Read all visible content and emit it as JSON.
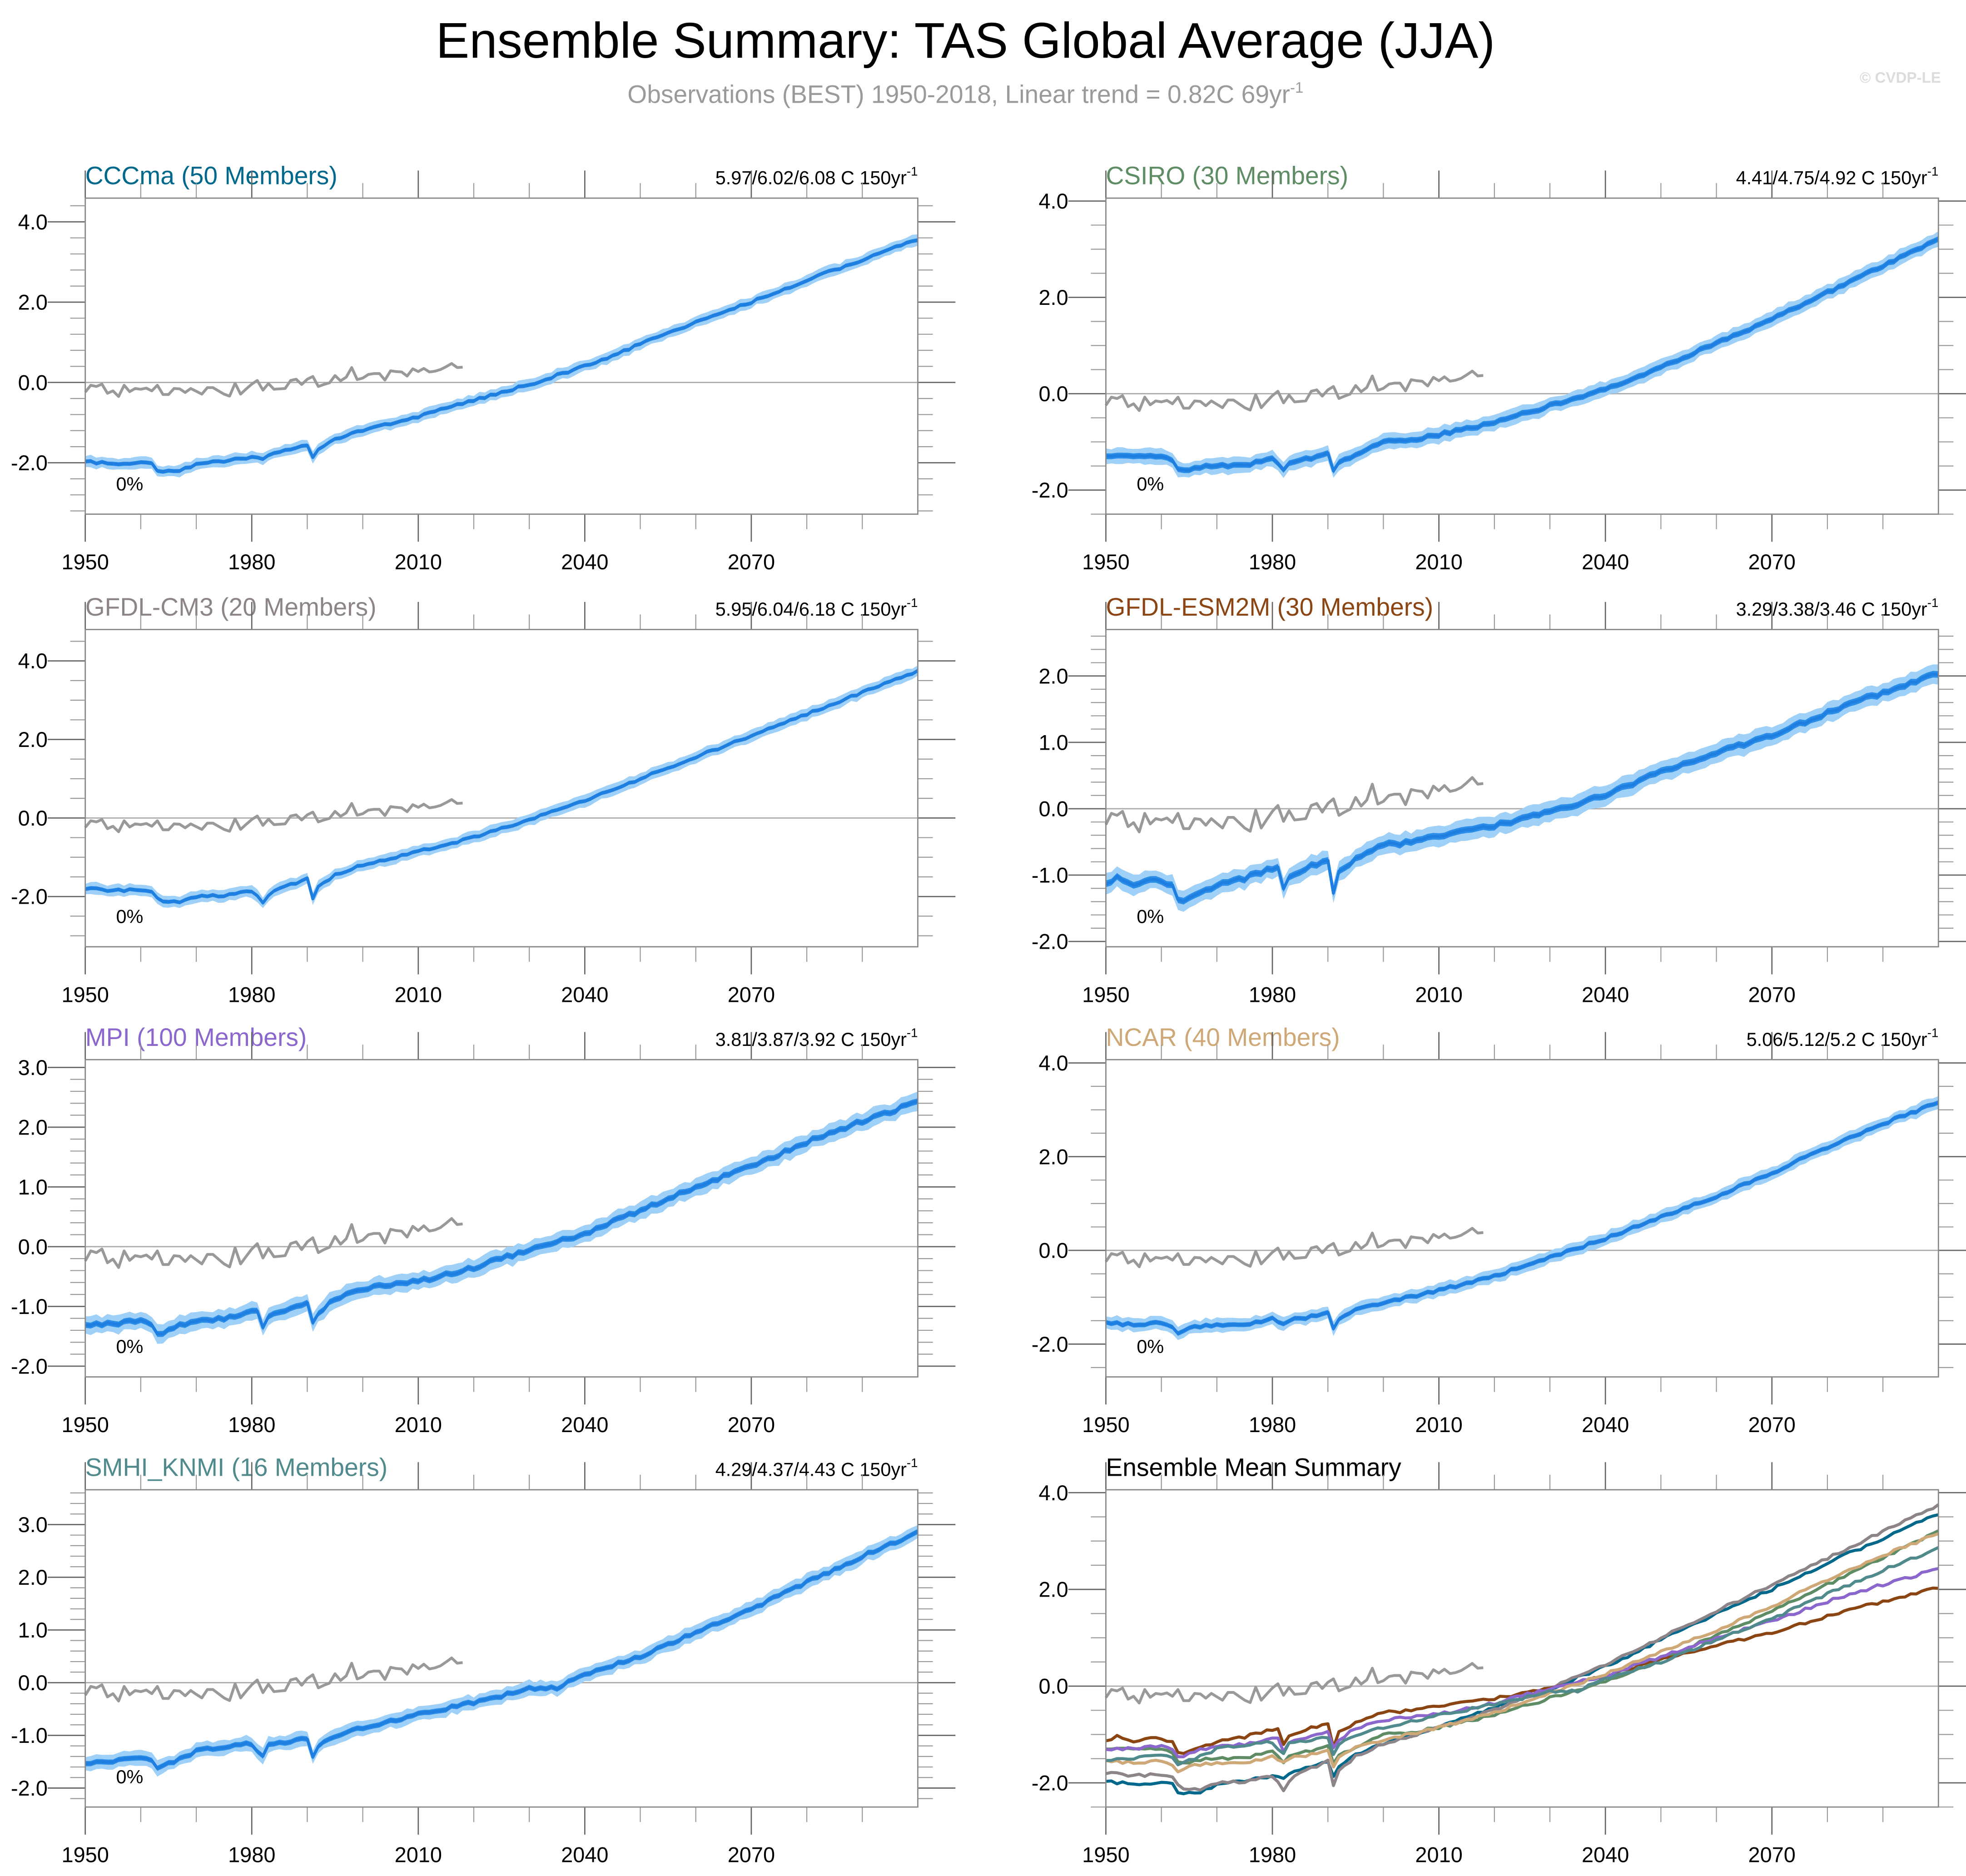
{
  "header": {
    "title": "Ensemble Summary: TAS Global Average (JJA)",
    "subtitle": "Observations (BEST) 1950-2018, Linear trend = 0.82C 69yr",
    "subtitle_sup": "-1",
    "watermark": "© CVDP-LE"
  },
  "colors": {
    "band_outer": "#9fd0f8",
    "band_inner": "#2c8de8",
    "mean_line": "#1e7fe0",
    "observations": "#999999",
    "zero_line": "#aaaaaa"
  },
  "chart_data": [
    {
      "type": "area",
      "id": "cccma",
      "title": "CCCma (50 Members)",
      "title_color": "#00688b",
      "trend_label": "5.97/6.02/6.08 C 150yr",
      "trend_sup": "-1",
      "pct_label": "0%",
      "xlim": [
        1950,
        2100
      ],
      "ylim": [
        -3.28,
        4.59
      ],
      "yticks": [
        "4.0",
        "2.0",
        "0.0",
        "-2.0"
      ],
      "ytick_values": [
        4.0,
        2.0,
        0.0,
        -2.0
      ],
      "yminor_step": 0.4,
      "xticks": [
        "1950",
        "1980",
        "2010",
        "2040",
        "2070"
      ],
      "ensemble_mean": {
        "x": [
          1950,
          1955,
          1960,
          1962,
          1963,
          1964,
          1967,
          1970,
          1975,
          1980,
          1982,
          1983,
          1985,
          1990,
          1991,
          1992,
          1995,
          2000,
          2010,
          2020,
          2030,
          2040,
          2050,
          2060,
          2070,
          2080,
          2090,
          2100
        ],
        "y": [
          -1.98,
          -2.02,
          -1.99,
          -2.03,
          -2.18,
          -2.2,
          -2.18,
          -2.05,
          -1.95,
          -1.85,
          -1.9,
          -1.82,
          -1.75,
          -1.55,
          -1.85,
          -1.65,
          -1.4,
          -1.2,
          -0.85,
          -0.45,
          -0.05,
          0.4,
          0.95,
          1.5,
          2.0,
          2.55,
          3.05,
          3.57
        ]
      },
      "spread_outer": 0.12,
      "spread_inner": 0.05
    },
    {
      "type": "area",
      "id": "csiro",
      "title": "CSIRO (30 Members)",
      "title_color": "#5e8c64",
      "trend_label": "4.41/4.75/4.92 C 150yr",
      "trend_sup": "-1",
      "pct_label": "0%",
      "xlim": [
        1950,
        2100
      ],
      "ylim": [
        -2.5,
        4.06
      ],
      "yticks": [
        "4.0",
        "2.0",
        "0.0",
        "-2.0"
      ],
      "ytick_values": [
        4.0,
        2.0,
        0.0,
        -2.0
      ],
      "yminor_step": 0.5,
      "xticks": [
        "1950",
        "1980",
        "2010",
        "2040",
        "2070"
      ],
      "ensemble_mean": {
        "x": [
          1950,
          1955,
          1960,
          1962,
          1963,
          1964,
          1967,
          1970,
          1975,
          1980,
          1982,
          1983,
          1985,
          1990,
          1991,
          1992,
          1995,
          2000,
          2005,
          2010,
          2020,
          2030,
          2040,
          2050,
          2060,
          2070,
          2080,
          2090,
          2100
        ],
        "y": [
          -1.28,
          -1.32,
          -1.3,
          -1.4,
          -1.55,
          -1.6,
          -1.52,
          -1.5,
          -1.48,
          -1.35,
          -1.58,
          -1.45,
          -1.38,
          -1.25,
          -1.62,
          -1.45,
          -1.25,
          -1.0,
          -0.97,
          -0.85,
          -0.6,
          -0.25,
          0.1,
          0.55,
          1.05,
          1.55,
          2.1,
          2.65,
          3.2
        ]
      },
      "spread_outer": 0.14,
      "spread_inner": 0.06
    },
    {
      "type": "area",
      "id": "gfdl-cm3",
      "title": "GFDL-CM3 (20 Members)",
      "title_color": "#8c8489",
      "trend_label": "5.95/6.04/6.18 C 150yr",
      "trend_sup": "-1",
      "pct_label": "0%",
      "xlim": [
        1950,
        2100
      ],
      "ylim": [
        -3.28,
        4.8
      ],
      "yticks": [
        "4.0",
        "2.0",
        "0.0",
        "-2.0"
      ],
      "ytick_values": [
        4.0,
        2.0,
        0.0,
        -2.0
      ],
      "yminor_step": 0.5,
      "xticks": [
        "1950",
        "1980",
        "2010",
        "2040",
        "2070"
      ],
      "ensemble_mean": {
        "x": [
          1950,
          1955,
          1960,
          1962,
          1963,
          1964,
          1967,
          1970,
          1975,
          1980,
          1982,
          1983,
          1985,
          1990,
          1991,
          1992,
          1995,
          2000,
          2010,
          2020,
          2030,
          2040,
          2050,
          2060,
          2070,
          2080,
          2090,
          2100
        ],
        "y": [
          -1.8,
          -1.85,
          -1.82,
          -1.88,
          -2.05,
          -2.1,
          -2.15,
          -2.0,
          -1.98,
          -1.85,
          -2.15,
          -1.95,
          -1.8,
          -1.55,
          -2.05,
          -1.75,
          -1.45,
          -1.2,
          -0.85,
          -0.5,
          -0.05,
          0.45,
          1.0,
          1.55,
          2.1,
          2.65,
          3.2,
          3.75
        ]
      },
      "spread_outer": 0.13,
      "spread_inner": 0.05
    },
    {
      "type": "area",
      "id": "gfdl-esm2m",
      "title": "GFDL-ESM2M (30 Members)",
      "title_color": "#8b4513",
      "trend_label": "3.29/3.38/3.46 C 150yr",
      "trend_sup": "-1",
      "pct_label": "0%",
      "xlim": [
        1950,
        2100
      ],
      "ylim": [
        -2.08,
        2.7
      ],
      "yticks": [
        "2.0",
        "1.0",
        "0.0",
        "-1.0",
        "-2.0"
      ],
      "ytick_values": [
        2.0,
        1.0,
        0.0,
        -1.0,
        -2.0
      ],
      "yminor_step": 0.2,
      "xticks": [
        "1950",
        "1980",
        "2010",
        "2040",
        "2070"
      ],
      "ensemble_mean": {
        "x": [
          1950,
          1952,
          1955,
          1958,
          1960,
          1962,
          1963,
          1964,
          1967,
          1970,
          1975,
          1980,
          1981,
          1982,
          1983,
          1985,
          1990,
          1991,
          1992,
          1995,
          2000,
          2005,
          2010,
          2020,
          2030,
          2040,
          2050,
          2060,
          2070,
          2080,
          2090,
          2100
        ],
        "y": [
          -1.15,
          -1.02,
          -1.15,
          -1.05,
          -1.12,
          -1.15,
          -1.35,
          -1.42,
          -1.25,
          -1.15,
          -1.05,
          -0.9,
          -0.85,
          -1.2,
          -1.0,
          -0.95,
          -0.75,
          -1.25,
          -0.95,
          -0.75,
          -0.55,
          -0.5,
          -0.4,
          -0.25,
          -0.05,
          0.2,
          0.55,
          0.85,
          1.1,
          1.45,
          1.75,
          2.05
        ]
      },
      "spread_outer": 0.13,
      "spread_inner": 0.05
    },
    {
      "type": "area",
      "id": "mpi",
      "title": "MPI (100 Members)",
      "title_color": "#8b66cc",
      "trend_label": "3.81/3.87/3.92 C 150yr",
      "trend_sup": "-1",
      "pct_label": "0%",
      "xlim": [
        1950,
        2100
      ],
      "ylim": [
        -2.18,
        3.13
      ],
      "yticks": [
        "3.0",
        "2.0",
        "1.0",
        "0.0",
        "-1.0",
        "-2.0"
      ],
      "ytick_values": [
        3.0,
        2.0,
        1.0,
        0.0,
        -1.0,
        -2.0
      ],
      "yminor_step": 0.2,
      "xticks": [
        "1950",
        "1980",
        "2010",
        "2040",
        "2070"
      ],
      "ensemble_mean": {
        "x": [
          1950,
          1955,
          1960,
          1962,
          1963,
          1964,
          1967,
          1970,
          1975,
          1980,
          1981,
          1982,
          1983,
          1985,
          1990,
          1991,
          1992,
          1995,
          2000,
          2010,
          2020,
          2030,
          2040,
          2050,
          2060,
          2070,
          2080,
          2090,
          2100
        ],
        "y": [
          -1.3,
          -1.3,
          -1.22,
          -1.3,
          -1.45,
          -1.45,
          -1.3,
          -1.25,
          -1.2,
          -1.08,
          -1.05,
          -1.35,
          -1.15,
          -1.1,
          -0.95,
          -1.25,
          -1.1,
          -0.88,
          -0.7,
          -0.58,
          -0.35,
          -0.05,
          0.22,
          0.6,
          1.0,
          1.35,
          1.75,
          2.1,
          2.42
        ]
      },
      "spread_outer": 0.13,
      "spread_inner": 0.05
    },
    {
      "type": "area",
      "id": "ncar",
      "title": "NCAR (40 Members)",
      "title_color": "#cfa878",
      "trend_label": "5.06/5.12/5.2 C 150yr",
      "trend_sup": "-1",
      "pct_label": "0%",
      "xlim": [
        1950,
        2100
      ],
      "ylim": [
        -2.7,
        4.07
      ],
      "yticks": [
        "4.0",
        "2.0",
        "0.0",
        "-2.0"
      ],
      "ytick_values": [
        4.0,
        2.0,
        0.0,
        -2.0
      ],
      "yminor_step": 0.5,
      "xticks": [
        "1950",
        "1980",
        "2010",
        "2040",
        "2070"
      ],
      "ensemble_mean": {
        "x": [
          1950,
          1955,
          1960,
          1962,
          1963,
          1964,
          1967,
          1970,
          1975,
          1980,
          1982,
          1983,
          1985,
          1990,
          1991,
          1992,
          1995,
          2000,
          2010,
          2020,
          2030,
          2040,
          2050,
          2060,
          2070,
          2080,
          2090,
          2100
        ],
        "y": [
          -1.55,
          -1.58,
          -1.55,
          -1.62,
          -1.75,
          -1.7,
          -1.62,
          -1.58,
          -1.58,
          -1.45,
          -1.55,
          -1.48,
          -1.45,
          -1.35,
          -1.65,
          -1.45,
          -1.25,
          -1.12,
          -0.85,
          -0.55,
          -0.15,
          0.25,
          0.7,
          1.15,
          1.65,
          2.2,
          2.7,
          3.15
        ]
      },
      "spread_outer": 0.12,
      "spread_inner": 0.05
    },
    {
      "type": "area",
      "id": "smhi-knmi",
      "title": "SMHI_KNMI (16 Members)",
      "title_color": "#508a8c",
      "trend_label": "4.29/4.37/4.43 C 150yr",
      "trend_sup": "-1",
      "pct_label": "0%",
      "xlim": [
        1950,
        2100
      ],
      "ylim": [
        -2.36,
        3.66
      ],
      "yticks": [
        "3.0",
        "2.0",
        "1.0",
        "0.0",
        "-1.0",
        "-2.0"
      ],
      "ytick_values": [
        3.0,
        2.0,
        1.0,
        0.0,
        -1.0,
        -2.0
      ],
      "yminor_step": 0.2,
      "xticks": [
        "1950",
        "1980",
        "2010",
        "2040",
        "2070"
      ],
      "ensemble_mean": {
        "x": [
          1950,
          1955,
          1960,
          1962,
          1963,
          1964,
          1967,
          1970,
          1975,
          1980,
          1981,
          1982,
          1983,
          1985,
          1990,
          1991,
          1992,
          1995,
          2000,
          2010,
          2020,
          2030,
          2035,
          2040,
          2050,
          2060,
          2070,
          2080,
          2090,
          2100
        ],
        "y": [
          -1.52,
          -1.48,
          -1.42,
          -1.5,
          -1.6,
          -1.58,
          -1.45,
          -1.3,
          -1.22,
          -1.15,
          -1.3,
          -1.38,
          -1.2,
          -1.15,
          -1.05,
          -1.4,
          -1.2,
          -1.0,
          -0.85,
          -0.6,
          -0.38,
          -0.12,
          -0.1,
          0.15,
          0.5,
          0.95,
          1.4,
          1.9,
          2.4,
          2.85
        ]
      },
      "spread_outer": 0.12,
      "spread_inner": 0.05
    },
    {
      "type": "line",
      "id": "ensemble-mean-summary",
      "title": "Ensemble Mean Summary",
      "title_color": "#000000",
      "xlim": [
        1950,
        2100
      ],
      "ylim": [
        -2.5,
        4.06
      ],
      "yticks": [
        "4.0",
        "2.0",
        "0.0",
        "-2.0"
      ],
      "ytick_values": [
        4.0,
        2.0,
        0.0,
        -2.0
      ],
      "yminor_step": 0.5,
      "xticks": [
        "1950",
        "1980",
        "2010",
        "2040",
        "2070"
      ],
      "series_refs": [
        "cccma",
        "csiro",
        "gfdl-cm3",
        "gfdl-esm2m",
        "mpi",
        "ncar",
        "smhi-knmi"
      ]
    }
  ],
  "observations": {
    "name": "Observations (BEST)",
    "x_start": 1950,
    "values": [
      -0.24,
      -0.07,
      -0.1,
      -0.04,
      -0.27,
      -0.21,
      -0.35,
      -0.07,
      -0.23,
      -0.15,
      -0.17,
      -0.14,
      -0.21,
      -0.07,
      -0.3,
      -0.3,
      -0.15,
      -0.16,
      -0.25,
      -0.15,
      -0.22,
      -0.29,
      -0.13,
      -0.13,
      -0.21,
      -0.29,
      -0.34,
      -0.02,
      -0.29,
      -0.16,
      -0.04,
      0.05,
      -0.19,
      -0.03,
      -0.17,
      -0.16,
      -0.15,
      0.05,
      0.08,
      -0.05,
      0.08,
      0.15,
      -0.1,
      -0.05,
      -0.01,
      0.17,
      0.04,
      0.13,
      0.37,
      0.07,
      0.11,
      0.2,
      0.22,
      0.22,
      0.06,
      0.29,
      0.27,
      0.26,
      0.16,
      0.34,
      0.27,
      0.35,
      0.26,
      0.28,
      0.32,
      0.39,
      0.47,
      0.37,
      0.38
    ]
  }
}
